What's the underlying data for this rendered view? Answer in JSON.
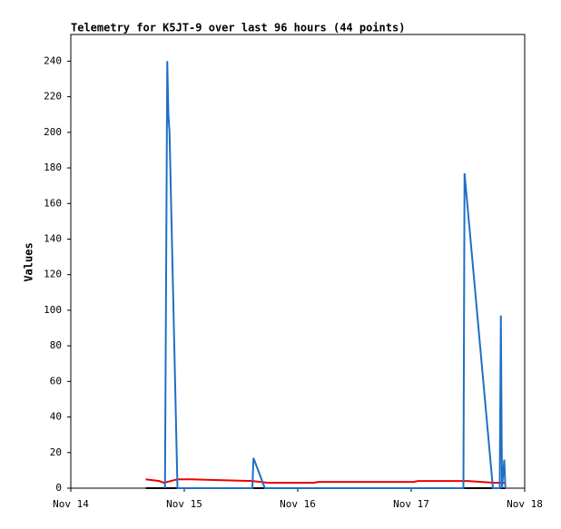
{
  "chart_data": {
    "type": "line",
    "title": "Telemetry for K5JT-9 over last 96 hours (44 points)",
    "y_label": "Values",
    "xlim": [
      14,
      18
    ],
    "xticks": [
      {
        "value": 14,
        "label": "Nov 14"
      },
      {
        "value": 15,
        "label": "Nov 15"
      },
      {
        "value": 16,
        "label": "Nov 16"
      },
      {
        "value": 17,
        "label": "Nov 17"
      },
      {
        "value": 18,
        "label": "Nov 18"
      }
    ],
    "ylim": [
      0,
      255
    ],
    "yticks": [
      0,
      20,
      40,
      60,
      80,
      100,
      120,
      140,
      160,
      180,
      200,
      220,
      240
    ],
    "grid": false,
    "series": [
      {
        "color": "#000000",
        "x": [
          14.66,
          17.83
        ],
        "values": [
          0,
          0
        ]
      },
      {
        "color": "#ee0000",
        "x": [
          14.66,
          14.78,
          14.82,
          14.94,
          15.06,
          15.3,
          15.6,
          15.74,
          16.14,
          16.18,
          17.02,
          17.06,
          17.5,
          17.74,
          17.83
        ],
        "values": [
          5,
          4,
          3,
          5,
          5,
          4.5,
          4,
          3,
          3,
          3.5,
          3.5,
          4,
          4,
          3,
          3
        ]
      },
      {
        "color": "#1f6fc4",
        "x": [
          14.83,
          14.84,
          14.85,
          14.86,
          14.87,
          14.94,
          15.6,
          15.61,
          15.71,
          17.46,
          17.47,
          17.72,
          17.78,
          17.79,
          17.8,
          17.82,
          17.83
        ],
        "values": [
          0,
          120,
          240,
          210,
          200,
          0,
          0,
          17,
          0,
          0,
          177,
          0,
          0,
          97,
          0,
          16,
          0
        ]
      }
    ]
  }
}
